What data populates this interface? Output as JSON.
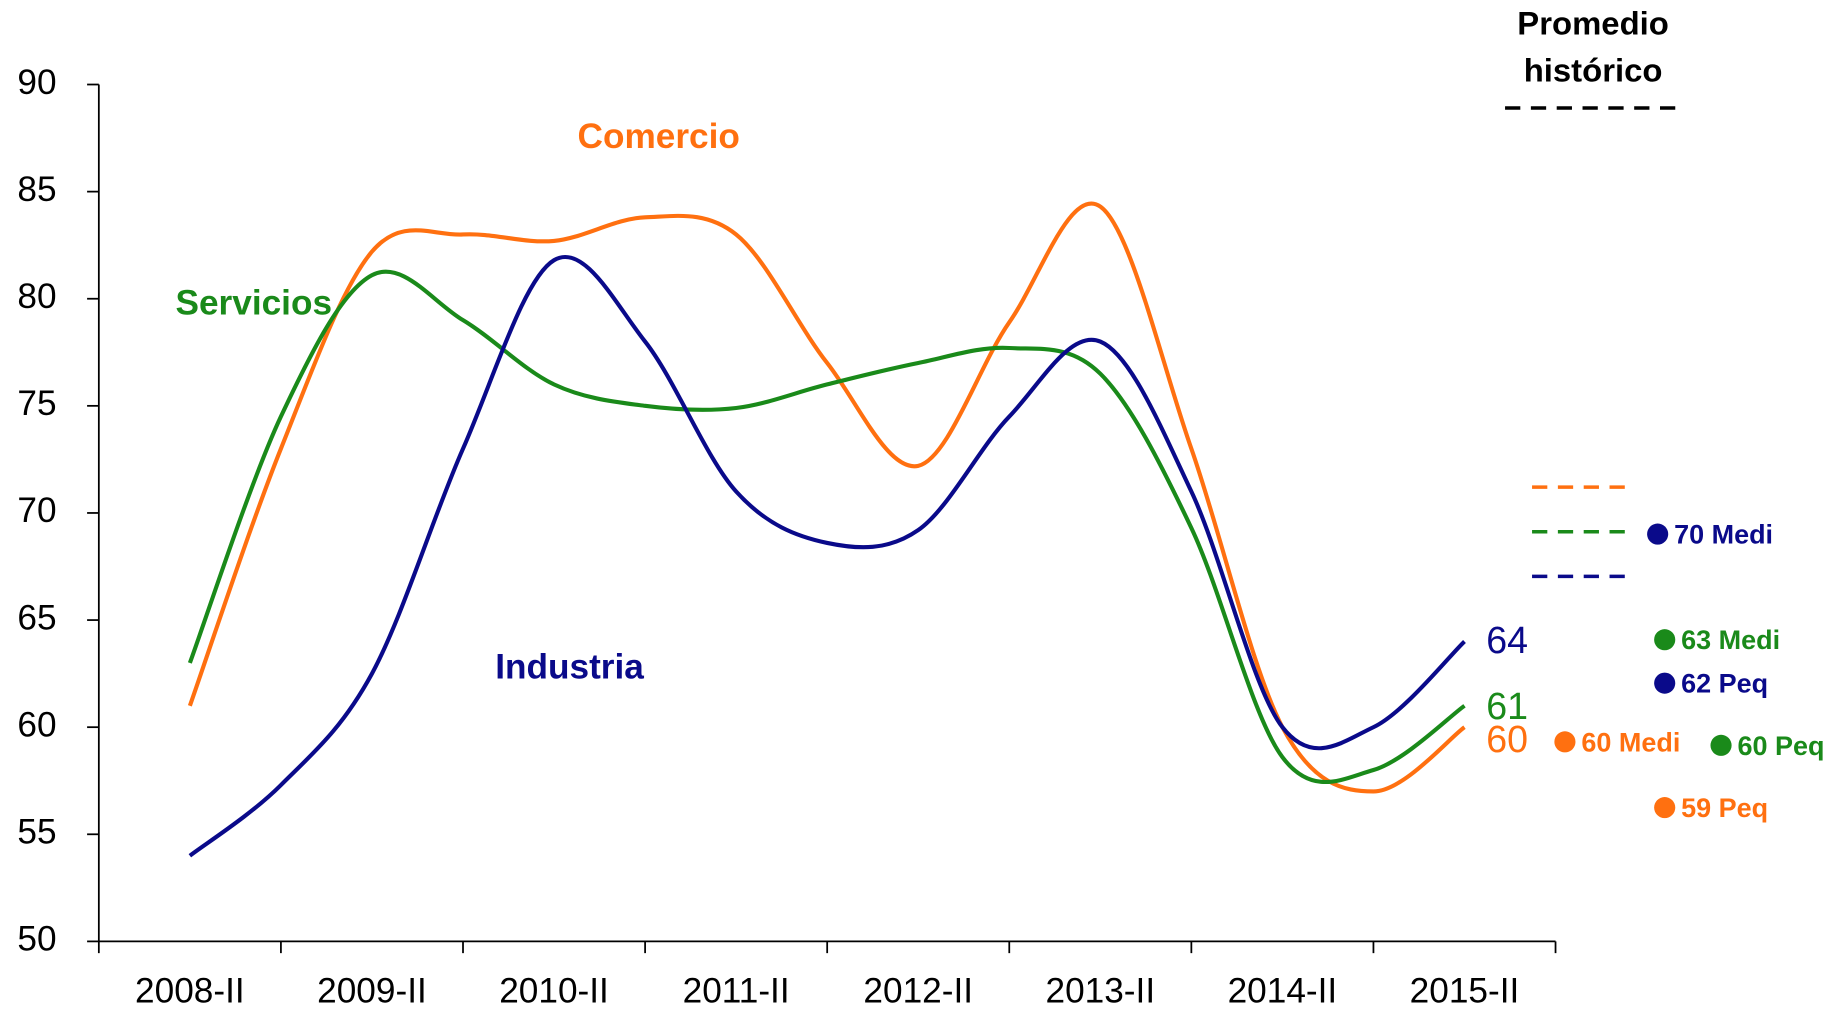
{
  "chart_data": {
    "type": "line",
    "categories": [
      "2008-II",
      null,
      "2009-II",
      null,
      "2010-II",
      null,
      "2011-II",
      null,
      "2012-II",
      null,
      "2013-II",
      null,
      "2014-II",
      null,
      "2015-II"
    ],
    "ylim": [
      50,
      90
    ],
    "yticks": [
      50,
      55,
      60,
      65,
      70,
      75,
      80,
      85,
      90
    ],
    "series": [
      {
        "name": "Comercio",
        "color": "#ff7010",
        "values": [
          61,
          73,
          82.2,
          83,
          82.7,
          83.8,
          83,
          77,
          72.2,
          78.9,
          84.3,
          73,
          60,
          57,
          60
        ],
        "average": 71.2
      },
      {
        "name": "Servicios",
        "color": "#1a8a1a",
        "values": [
          63,
          74.5,
          81.1,
          79,
          76,
          75,
          74.9,
          76,
          77,
          77.7,
          76.5,
          69.3,
          58.6,
          58,
          61
        ],
        "average": 69
      },
      {
        "name": "Industria",
        "color": "#0a0a8a",
        "values": [
          54,
          57.3,
          62.5,
          73,
          81.8,
          78,
          71,
          68.6,
          69.2,
          74.5,
          78,
          71,
          60,
          60,
          64
        ],
        "average": 67
      }
    ],
    "average_title": [
      "Promedio",
      "histórico"
    ],
    "side_labels": [
      {
        "text": "70 Medi",
        "color": "#0a0a8a"
      },
      {
        "text": "63 Medi",
        "color": "#1a8a1a"
      },
      {
        "text": "62 Peq",
        "color": "#0a0a8a"
      },
      {
        "text": "60 Medi",
        "color": "#ff7010"
      },
      {
        "text": "60 Peq",
        "color": "#1a8a1a"
      },
      {
        "text": "59 Peq",
        "color": "#ff7010"
      }
    ]
  }
}
